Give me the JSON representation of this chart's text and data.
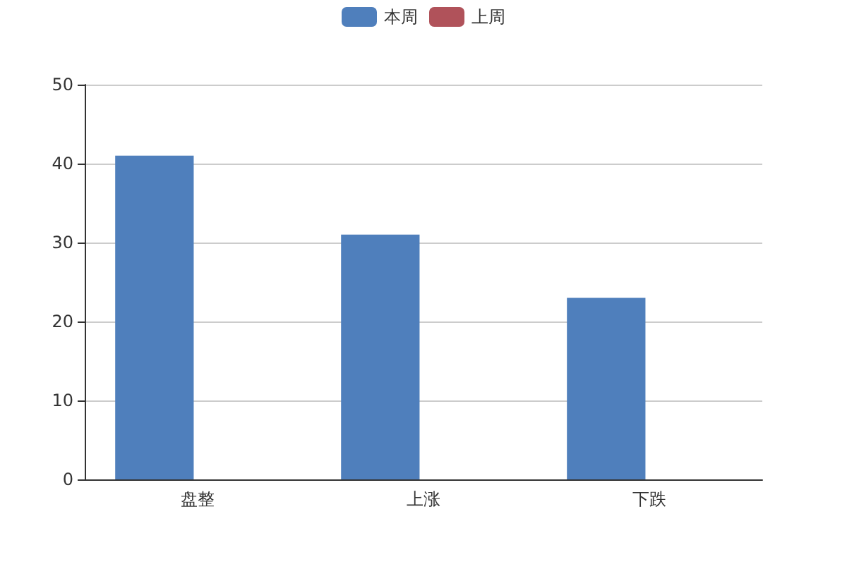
{
  "chart_data": {
    "type": "bar",
    "categories": [
      "盘整",
      "上涨",
      "下跌"
    ],
    "series": [
      {
        "name": "本周",
        "color": "#4f7fbc",
        "values": [
          41,
          31,
          23
        ]
      },
      {
        "name": "上周",
        "color": "#b0525a",
        "values": [
          0,
          0,
          0
        ]
      }
    ],
    "ylim": [
      0,
      50
    ],
    "yticks": [
      0,
      10,
      20,
      30,
      40,
      50
    ],
    "grid": "y",
    "legend": "top"
  }
}
